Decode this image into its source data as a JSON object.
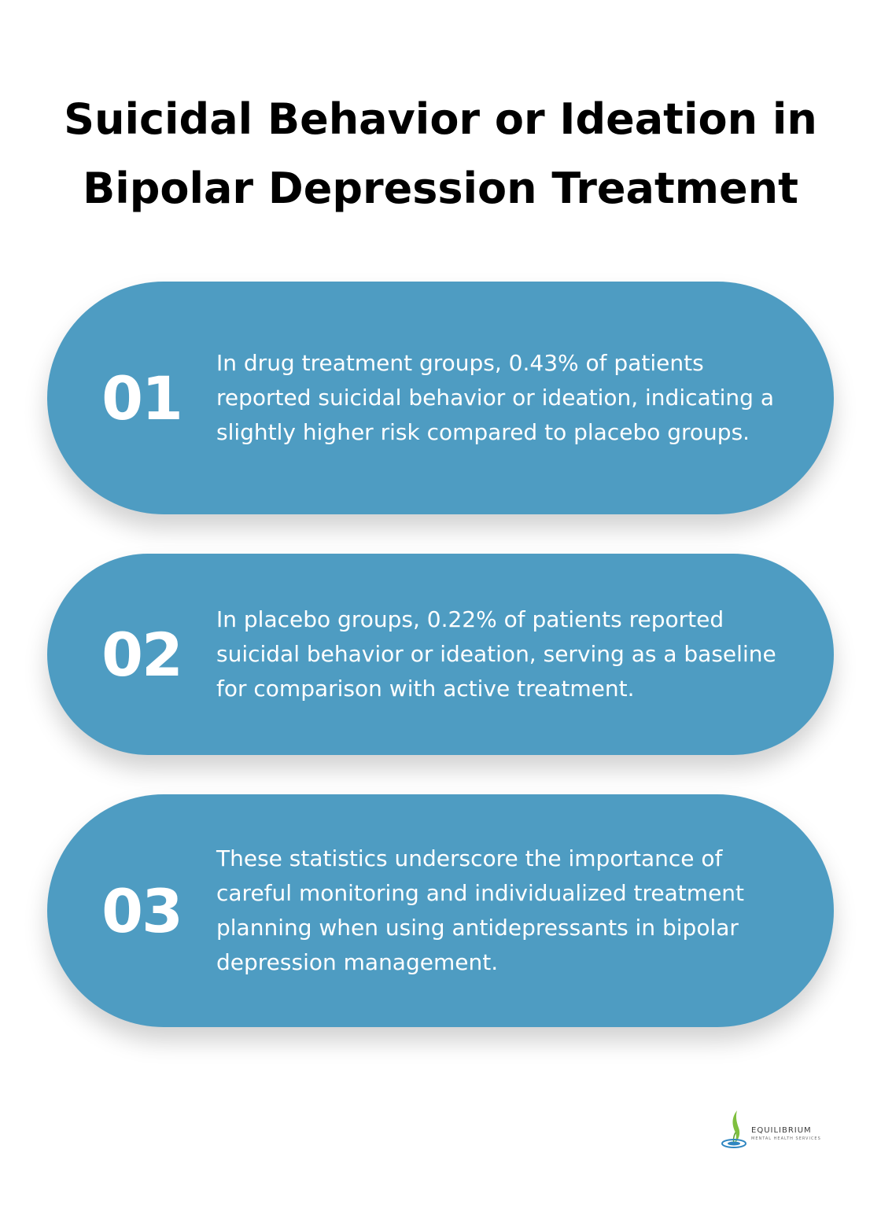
{
  "title": {
    "line1": "Suicidal Behavior or Ideation in",
    "line2": "Bipolar Depression Treatment"
  },
  "colors": {
    "card": "#4e9cc2",
    "text": "#ffffff",
    "title": "#000000"
  },
  "items": [
    {
      "number": "01",
      "text": "In drug treatment groups, 0.43% of patients reported suicidal behavior or ideation, indicating a slightly higher risk compared to placebo groups."
    },
    {
      "number": "02",
      "text": "In placebo groups, 0.22% of patients reported suicidal behavior or ideation, serving as a baseline for comparison with active treatment."
    },
    {
      "number": "03",
      "text": "These statistics underscore the importance of careful monitoring and individualized treatment planning when using antidepressants in bipolar depression management."
    }
  ],
  "logo": {
    "name": "EQUILIBRIUM",
    "tagline": "MENTAL HEALTH SERVICES",
    "icon": "sprout-drop-icon"
  }
}
